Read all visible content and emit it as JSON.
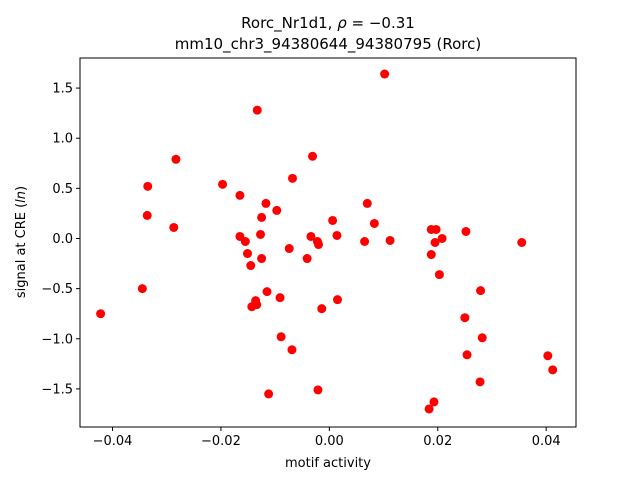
{
  "chart_data": {
    "type": "scatter",
    "title_line1_prefix": "Rorc_Nr1d1, ",
    "title_rho_symbol": "ρ",
    "title_rho_value": " = −0.31",
    "title_line2": "mm10_chr3_94380644_94380795 (Rorc)",
    "xlabel": "motif activity",
    "ylabel_prefix": "signal at CRE (",
    "ylabel_italic": "ln",
    "ylabel_suffix": ")",
    "xlim": [
      -0.046,
      0.0455
    ],
    "ylim": [
      -1.88,
      1.8
    ],
    "xticks": [
      -0.04,
      -0.02,
      0.0,
      0.02,
      0.04
    ],
    "xtick_labels": [
      "−0.04",
      "−0.02",
      "0.00",
      "0.02",
      "0.04"
    ],
    "yticks": [
      -1.5,
      -1.0,
      -0.5,
      0.0,
      0.5,
      1.0,
      1.5
    ],
    "ytick_labels": [
      "−1.5",
      "−1.0",
      "−0.5",
      "0.0",
      "0.5",
      "1.0",
      "1.5"
    ],
    "grid": false,
    "marker_color": "#ff0000",
    "points": [
      {
        "x": -0.0422,
        "y": -0.75
      },
      {
        "x": -0.0345,
        "y": -0.5
      },
      {
        "x": -0.0335,
        "y": 0.52
      },
      {
        "x": -0.0336,
        "y": 0.23
      },
      {
        "x": -0.0287,
        "y": 0.11
      },
      {
        "x": -0.0283,
        "y": 0.79
      },
      {
        "x": -0.0197,
        "y": 0.54
      },
      {
        "x": -0.0165,
        "y": 0.43
      },
      {
        "x": -0.0165,
        "y": 0.02
      },
      {
        "x": -0.0155,
        "y": -0.03
      },
      {
        "x": -0.0151,
        "y": -0.15
      },
      {
        "x": -0.0145,
        "y": -0.27
      },
      {
        "x": -0.0143,
        "y": -0.68
      },
      {
        "x": -0.0136,
        "y": -0.62
      },
      {
        "x": -0.0134,
        "y": -0.66
      },
      {
        "x": -0.0133,
        "y": 1.28
      },
      {
        "x": -0.0127,
        "y": 0.04
      },
      {
        "x": -0.0125,
        "y": 0.21
      },
      {
        "x": -0.0125,
        "y": -0.2
      },
      {
        "x": -0.0117,
        "y": 0.35
      },
      {
        "x": -0.0115,
        "y": -0.53
      },
      {
        "x": -0.0112,
        "y": -1.55
      },
      {
        "x": -0.0097,
        "y": 0.28
      },
      {
        "x": -0.0091,
        "y": -0.59
      },
      {
        "x": -0.0089,
        "y": -0.98
      },
      {
        "x": -0.0074,
        "y": -0.1
      },
      {
        "x": -0.0068,
        "y": 0.6
      },
      {
        "x": -0.0069,
        "y": -1.11
      },
      {
        "x": -0.0041,
        "y": -0.2
      },
      {
        "x": -0.0034,
        "y": 0.02
      },
      {
        "x": -0.0031,
        "y": 0.82
      },
      {
        "x": -0.0022,
        "y": -0.03
      },
      {
        "x": -0.002,
        "y": -0.06
      },
      {
        "x": -0.0021,
        "y": -1.51
      },
      {
        "x": -0.0014,
        "y": -0.7
      },
      {
        "x": 0.0006,
        "y": 0.18
      },
      {
        "x": 0.0014,
        "y": 0.03
      },
      {
        "x": 0.0015,
        "y": -0.61
      },
      {
        "x": 0.0065,
        "y": -0.03
      },
      {
        "x": 0.007,
        "y": 0.35
      },
      {
        "x": 0.0083,
        "y": 0.15
      },
      {
        "x": 0.0102,
        "y": 1.64
      },
      {
        "x": 0.0112,
        "y": -0.02
      },
      {
        "x": 0.0184,
        "y": -1.7
      },
      {
        "x": 0.0188,
        "y": 0.09
      },
      {
        "x": 0.0188,
        "y": -0.16
      },
      {
        "x": 0.0193,
        "y": -1.63
      },
      {
        "x": 0.0195,
        "y": -0.04
      },
      {
        "x": 0.0197,
        "y": 0.09
      },
      {
        "x": 0.0203,
        "y": -0.36
      },
      {
        "x": 0.0208,
        "y": 0.0
      },
      {
        "x": 0.025,
        "y": -0.79
      },
      {
        "x": 0.0252,
        "y": 0.07
      },
      {
        "x": 0.0254,
        "y": -1.16
      },
      {
        "x": 0.0278,
        "y": -1.43
      },
      {
        "x": 0.0279,
        "y": -0.52
      },
      {
        "x": 0.0282,
        "y": -0.99
      },
      {
        "x": 0.0355,
        "y": -0.04
      },
      {
        "x": 0.0403,
        "y": -1.17
      },
      {
        "x": 0.0412,
        "y": -1.31
      }
    ]
  }
}
